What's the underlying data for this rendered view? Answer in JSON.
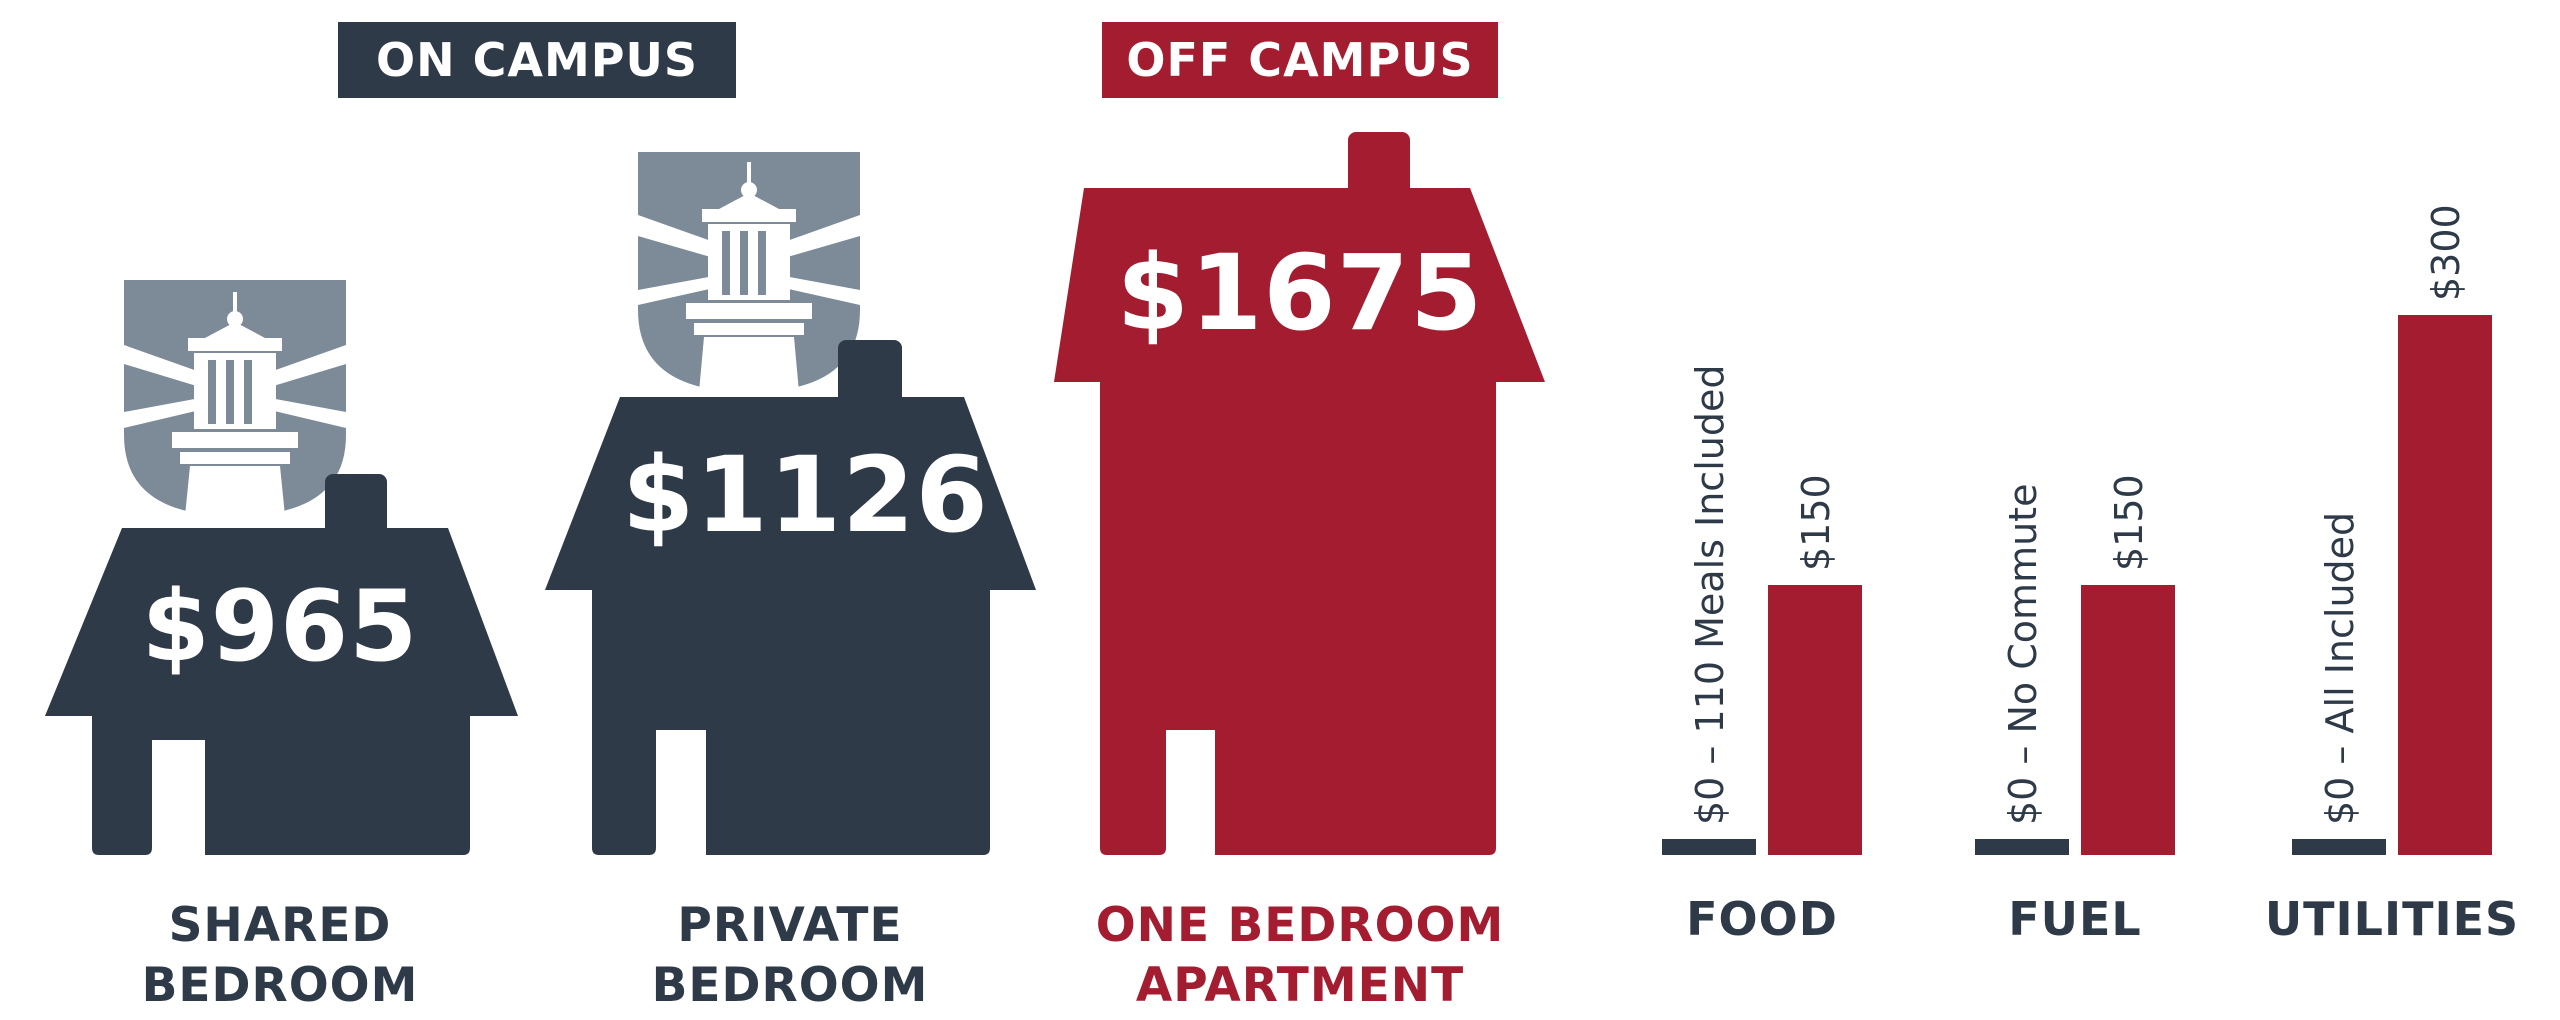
{
  "colors": {
    "navy": "#2e3a48",
    "crimson": "#a31c30",
    "slate": "#7d8b99",
    "white": "#ffffff"
  },
  "sections": {
    "on_campus": "ON CAMPUS",
    "off_campus": "OFF CAMPUS"
  },
  "housing": [
    {
      "price": "$965",
      "line1": "SHARED",
      "line2": "BEDROOM",
      "value": 965,
      "icon": "house-with-lighthouse-icon"
    },
    {
      "price": "$1126",
      "line1": "PRIVATE",
      "line2": "BEDROOM",
      "value": 1126,
      "icon": "house-with-lighthouse-icon"
    },
    {
      "price": "$1675",
      "line1": "ONE BEDROOM",
      "line2": "APARTMENT",
      "value": 1675,
      "icon": "house-icon"
    }
  ],
  "chart_data": {
    "type": "bar",
    "categories": [
      "FOOD",
      "FUEL",
      "UTILITIES"
    ],
    "series": [
      {
        "values": [
          0,
          0,
          0
        ],
        "labels": [
          "$0 – 110 Meals Included",
          "$0 – No Commute",
          "$0 – All Included"
        ]
      },
      {
        "values": [
          150,
          150,
          300
        ],
        "labels": [
          "$150",
          "$150",
          "$300"
        ]
      }
    ],
    "ylim": [
      0,
      330
    ],
    "grid": false
  }
}
